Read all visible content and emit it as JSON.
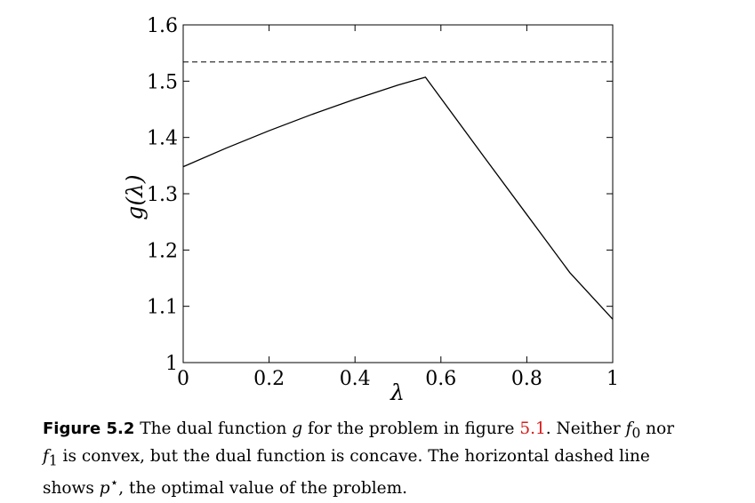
{
  "chart_data": {
    "type": "line",
    "title": "",
    "xlabel": "λ",
    "ylabel": "g(λ)",
    "xlim": [
      0,
      1
    ],
    "ylim": [
      1,
      1.6
    ],
    "x_ticks": [
      0,
      0.2,
      0.4,
      0.6,
      0.8,
      1
    ],
    "x_tick_labels": [
      "0",
      "0.2",
      "0.4",
      "0.6",
      "0.8",
      "1"
    ],
    "y_ticks": [
      1,
      1.1,
      1.2,
      1.3,
      1.4,
      1.5,
      1.6
    ],
    "y_tick_labels": [
      "1",
      "1.1",
      "1.2",
      "1.3",
      "1.4",
      "1.5",
      "1.6"
    ],
    "grid": false,
    "series": [
      {
        "style": "solid",
        "color": "#000000",
        "x": [
          0,
          0.1,
          0.2,
          0.3,
          0.4,
          0.5,
          0.564,
          0.7,
          0.8,
          0.9,
          1.0
        ],
        "y": [
          1.348,
          1.381,
          1.412,
          1.441,
          1.468,
          1.493,
          1.507,
          1.366,
          1.263,
          1.16,
          1.077
        ]
      }
    ],
    "hlines": [
      {
        "y": 1.534,
        "style": "dashed",
        "color": "#000000"
      }
    ]
  },
  "caption": {
    "label": "Figure 5.2",
    "line1_a": " The dual function ",
    "line1_g": "g",
    "line1_b": " for the problem in figure ",
    "line1_ref": "5.1",
    "line1_c": ". Neither ",
    "line1_f0": "f",
    "line1_f0_sub": "0",
    "line1_d": " nor",
    "line2_f1": "f",
    "line2_f1_sub": "1",
    "line2_a": " is convex, but the dual function is concave. The horizontal dashed line",
    "line3_a": "shows ",
    "line3_p": "p",
    "line3_star": "⋆",
    "line3_b": ", the optimal value of the problem."
  }
}
